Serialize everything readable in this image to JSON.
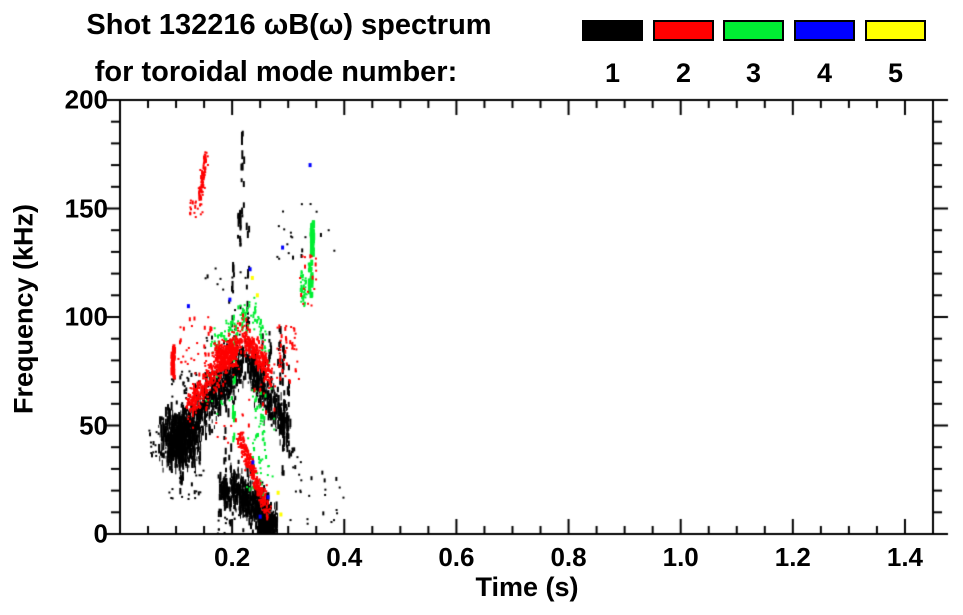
{
  "header": {
    "title_line1": "Shot 132216 ωB(ω) spectrum",
    "title_line2": "for toroidal mode number:"
  },
  "legend": {
    "entries": [
      {
        "label": "1",
        "color": "#000000"
      },
      {
        "label": "2",
        "color": "#ff0000"
      },
      {
        "label": "3",
        "color": "#00ee33"
      },
      {
        "label": "4",
        "color": "#0000ff"
      },
      {
        "label": "5",
        "color": "#ffff00"
      }
    ]
  },
  "chart_data": {
    "type": "scatter",
    "title": "Shot 132216 ωB(ω) spectrum for toroidal mode number: 1 2 3 4 5",
    "xlabel": "Time (s)",
    "ylabel": "Frequency (kHz)",
    "xlim": [
      0,
      1.45
    ],
    "ylim": [
      0,
      200
    ],
    "x_major_ticks": [
      0.2,
      0.4,
      0.6,
      0.8,
      1.0,
      1.2,
      1.4
    ],
    "x_tick_labels": [
      "0.2",
      "0.4",
      "0.6",
      "0.8",
      "1.0",
      "1.2",
      "1.4"
    ],
    "x_minor_step": 0.05,
    "y_major_ticks": [
      0,
      50,
      100,
      150,
      200
    ],
    "y_tick_labels": [
      "0",
      "50",
      "100",
      "150",
      "200"
    ],
    "y_minor_step": 10,
    "grid": false,
    "legend_position": "top-right",
    "mode_colors": {
      "1": "#000000",
      "2": "#ff0000",
      "3": "#00ee33",
      "4": "#0000ff",
      "5": "#ffff00"
    },
    "features": [
      {
        "mode": 1,
        "type": "blob",
        "t": [
          0.068,
          0.148
        ],
        "f": [
          29,
          59
        ],
        "n": 780,
        "streak": true
      },
      {
        "mode": 1,
        "type": "band",
        "p0": [
          0.132,
          52
        ],
        "p1": [
          0.22,
          80
        ],
        "st": 0.006,
        "sf": 5,
        "n": 460,
        "streak": true
      },
      {
        "mode": 1,
        "type": "band",
        "p0": [
          0.228,
          80
        ],
        "p1": [
          0.3,
          48
        ],
        "st": 0.004,
        "sf": 4.5,
        "n": 330,
        "streak": true
      },
      {
        "mode": 1,
        "type": "band",
        "p0": [
          0.198,
          22
        ],
        "p1": [
          0.272,
          5
        ],
        "st": 0.005,
        "sf": 5,
        "n": 520,
        "streak": true
      },
      {
        "mode": 1,
        "type": "blob",
        "t": [
          0.245,
          0.285
        ],
        "f": [
          0,
          9
        ],
        "n": 230,
        "streak": true
      },
      {
        "mode": 1,
        "type": "blob",
        "t": [
          0.178,
          0.196
        ],
        "f": [
          13,
          26
        ],
        "n": 70,
        "streak": true
      },
      {
        "mode": 1,
        "type": "vstreak",
        "t": 0.219,
        "f": [
          145,
          193
        ],
        "n": 12
      },
      {
        "mode": 1,
        "type": "vstreak",
        "t": 0.213,
        "f": [
          127,
          150
        ],
        "n": 16
      },
      {
        "mode": 1,
        "type": "vstreak",
        "t": 0.228,
        "f": [
          95,
          142
        ],
        "n": 14
      },
      {
        "mode": 1,
        "type": "vstreak",
        "t": 0.202,
        "f": [
          88,
          126
        ],
        "n": 10
      },
      {
        "mode": 1,
        "type": "vstreak",
        "t": 0.292,
        "f": [
          25,
          90
        ],
        "n": 26
      },
      {
        "mode": 1,
        "type": "vstreak",
        "t": 0.3,
        "f": [
          30,
          80
        ],
        "n": 16
      },
      {
        "mode": 1,
        "type": "vstreak",
        "t": 0.284,
        "f": [
          55,
          95
        ],
        "n": 14
      },
      {
        "mode": 1,
        "type": "vstreak",
        "t": 0.268,
        "f": [
          50,
          100
        ],
        "n": 16
      },
      {
        "mode": 1,
        "type": "vstreak",
        "t": 0.255,
        "f": [
          60,
          95
        ],
        "n": 10
      },
      {
        "mode": 1,
        "type": "vstreak",
        "t": 0.178,
        "f": [
          5,
          28
        ],
        "n": 10
      },
      {
        "mode": 1,
        "type": "vstreak",
        "t": 0.188,
        "f": [
          8,
          50
        ],
        "n": 12
      },
      {
        "mode": 1,
        "type": "vstreak",
        "t": 0.196,
        "f": [
          4,
          40
        ],
        "n": 10
      },
      {
        "mode": 1,
        "type": "vstreak",
        "t": 0.11,
        "f": [
          16,
          30
        ],
        "n": 8
      },
      {
        "mode": 1,
        "type": "dots",
        "t": [
          0.05,
          0.068
        ],
        "f": [
          35,
          48
        ],
        "n": 12
      },
      {
        "mode": 1,
        "type": "dots",
        "t": [
          0.28,
          0.325
        ],
        "f": [
          125,
          152
        ],
        "n": 14
      },
      {
        "mode": 1,
        "type": "dots",
        "t": [
          0.33,
          0.385
        ],
        "f": [
          130,
          155
        ],
        "n": 8
      },
      {
        "mode": 1,
        "type": "dots",
        "t": [
          0.3,
          0.4
        ],
        "f": [
          2,
          30
        ],
        "n": 22
      },
      {
        "mode": 1,
        "type": "dots",
        "t": [
          0.15,
          0.23
        ],
        "f": [
          85,
          125
        ],
        "n": 26
      },
      {
        "mode": 1,
        "type": "dots",
        "t": [
          0.09,
          0.145
        ],
        "f": [
          58,
          75
        ],
        "n": 36
      },
      {
        "mode": 1,
        "type": "dots",
        "t": [
          0.08,
          0.15
        ],
        "f": [
          15,
          30
        ],
        "n": 22
      },
      {
        "mode": 1,
        "type": "dots",
        "t": [
          0.305,
          0.325
        ],
        "f": [
          25,
          40
        ],
        "n": 10
      },
      {
        "mode": 1,
        "type": "dots",
        "t": [
          0.17,
          0.22
        ],
        "f": [
          0,
          10
        ],
        "n": 12
      },
      {
        "mode": 3,
        "type": "band",
        "p0": [
          0.163,
          86
        ],
        "p1": [
          0.232,
          103
        ],
        "st": 0.004,
        "sf": 3,
        "n": 85
      },
      {
        "mode": 3,
        "type": "band",
        "p0": [
          0.238,
          102
        ],
        "p1": [
          0.262,
          86
        ],
        "st": 0.003,
        "sf": 3,
        "n": 40
      },
      {
        "mode": 3,
        "type": "vstreak",
        "t": 0.343,
        "f": [
          129,
          143
        ],
        "n": 30,
        "w": 3
      },
      {
        "mode": 3,
        "type": "vstreak",
        "t": 0.34,
        "f": [
          107,
          126
        ],
        "n": 20,
        "w": 3
      },
      {
        "mode": 3,
        "type": "blob",
        "t": [
          0.32,
          0.335
        ],
        "f": [
          103,
          122
        ],
        "n": 40
      },
      {
        "mode": 3,
        "type": "vstreak",
        "t": 0.203,
        "f": [
          35,
          92
        ],
        "n": 16
      },
      {
        "mode": 3,
        "type": "dots",
        "t": [
          0.225,
          0.26
        ],
        "f": [
          20,
          46
        ],
        "n": 28
      },
      {
        "mode": 3,
        "type": "band",
        "p0": [
          0.238,
          66
        ],
        "p1": [
          0.256,
          50
        ],
        "st": 0.003,
        "sf": 3,
        "n": 26
      },
      {
        "mode": 3,
        "type": "dots",
        "t": [
          0.15,
          0.2
        ],
        "f": [
          55,
          80
        ],
        "n": 10
      },
      {
        "mode": 3,
        "type": "dots",
        "t": [
          0.24,
          0.275
        ],
        "f": [
          18,
          68
        ],
        "n": 20
      },
      {
        "mode": 2,
        "type": "band",
        "p0": [
          0.143,
          154
        ],
        "p1": [
          0.153,
          175
        ],
        "st": 0.002,
        "sf": 2,
        "n": 80
      },
      {
        "mode": 2,
        "type": "dots",
        "t": [
          0.124,
          0.15
        ],
        "f": [
          146,
          154
        ],
        "n": 20
      },
      {
        "mode": 2,
        "type": "vstreak",
        "t": 0.095,
        "f": [
          72,
          86
        ],
        "n": 24,
        "w": 3
      },
      {
        "mode": 2,
        "type": "band",
        "p0": [
          0.122,
          58
        ],
        "p1": [
          0.218,
          91
        ],
        "st": 0.005,
        "sf": 3.5,
        "n": 430
      },
      {
        "mode": 2,
        "type": "blob",
        "t": [
          0.162,
          0.215
        ],
        "f": [
          75,
          90
        ],
        "n": 190
      },
      {
        "mode": 2,
        "type": "band",
        "p0": [
          0.22,
          92
        ],
        "p1": [
          0.268,
          74
        ],
        "st": 0.003,
        "sf": 3,
        "n": 270
      },
      {
        "mode": 2,
        "type": "dots",
        "t": [
          0.28,
          0.32
        ],
        "f": [
          70,
          96
        ],
        "n": 46
      },
      {
        "mode": 2,
        "type": "band",
        "p0": [
          0.213,
          45
        ],
        "p1": [
          0.263,
          11
        ],
        "st": 0.003,
        "sf": 2.5,
        "n": 250
      },
      {
        "mode": 2,
        "type": "dots",
        "t": [
          0.1,
          0.165
        ],
        "f": [
          78,
          100
        ],
        "n": 30
      },
      {
        "mode": 2,
        "type": "dots",
        "t": [
          0.32,
          0.35
        ],
        "f": [
          105,
          130
        ],
        "n": 18
      },
      {
        "mode": 2,
        "type": "dots",
        "t": [
          0.17,
          0.23
        ],
        "f": [
          40,
          56
        ],
        "n": 12
      },
      {
        "mode": 2,
        "type": "dots",
        "t": [
          0.23,
          0.3
        ],
        "f": [
          55,
          70
        ],
        "n": 10
      },
      {
        "mode": 4,
        "type": "points",
        "pts": [
          [
            0.339,
            170
          ],
          [
            0.29,
            132
          ],
          [
            0.196,
            108
          ],
          [
            0.122,
            105
          ],
          [
            0.237,
            33
          ],
          [
            0.264,
            17
          ],
          [
            0.232,
            122
          ],
          [
            0.25,
            8
          ]
        ]
      },
      {
        "mode": 5,
        "type": "points",
        "pts": [
          [
            0.236,
            118
          ],
          [
            0.245,
            110
          ],
          [
            0.282,
            19
          ],
          [
            0.287,
            9
          ]
        ]
      }
    ]
  }
}
